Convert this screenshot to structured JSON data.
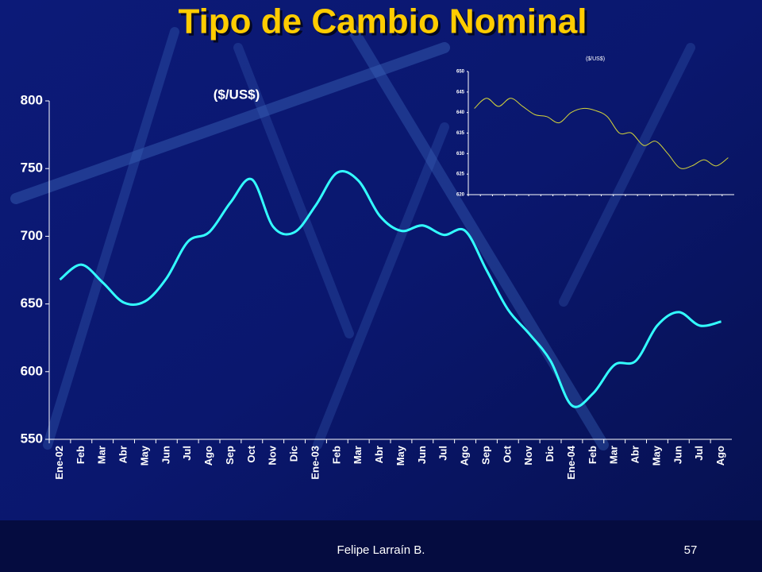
{
  "title": "Tipo de Cambio Nominal",
  "chart_data": [
    {
      "type": "line",
      "annotation": "($/US$)",
      "categories": [
        "Ene-02",
        "Feb",
        "Mar",
        "Abr",
        "May",
        "Jun",
        "Jul",
        "Ago",
        "Sep",
        "Oct",
        "Nov",
        "Dic",
        "Ene-03",
        "Feb",
        "Mar",
        "Abr",
        "May",
        "Jun",
        "Jul",
        "Ago",
        "Sep",
        "Oct",
        "Nov",
        "Dic",
        "Ene-04",
        "Feb",
        "Mar",
        "Abr",
        "May",
        "Jun",
        "Jul",
        "Ago"
      ],
      "series": [
        {
          "color": "#33ffff",
          "values": [
            668,
            679,
            666,
            651,
            652,
            669,
            696,
            703,
            725,
            742,
            707,
            703,
            723,
            747,
            741,
            715,
            704,
            708,
            701,
            704,
            675,
            646,
            628,
            608,
            575,
            584,
            605,
            608,
            634,
            644,
            634,
            637
          ]
        }
      ],
      "ylim": [
        550,
        800
      ],
      "yticks": [
        550,
        600,
        650,
        700,
        750,
        800
      ]
    },
    {
      "type": "line",
      "title": "($/US$)",
      "categories": [
        null,
        null,
        null,
        null,
        null,
        null,
        null,
        null,
        null,
        null,
        null,
        null,
        null,
        null,
        null,
        null,
        null,
        null,
        null,
        null,
        null,
        null
      ],
      "series": [
        {
          "color": "#d4d43a",
          "values": [
            641,
            643.5,
            641.5,
            643.5,
            641.5,
            639.5,
            639,
            637.5,
            640,
            641,
            640.5,
            639,
            635,
            635,
            632,
            633,
            630,
            626.5,
            627,
            628.5,
            627,
            629
          ]
        }
      ],
      "ylim": [
        620,
        650
      ],
      "yticks": [
        620,
        625,
        630,
        635,
        640,
        645,
        650
      ]
    }
  ],
  "footer": {
    "author": "Felipe Larraín B.",
    "page": "57"
  }
}
